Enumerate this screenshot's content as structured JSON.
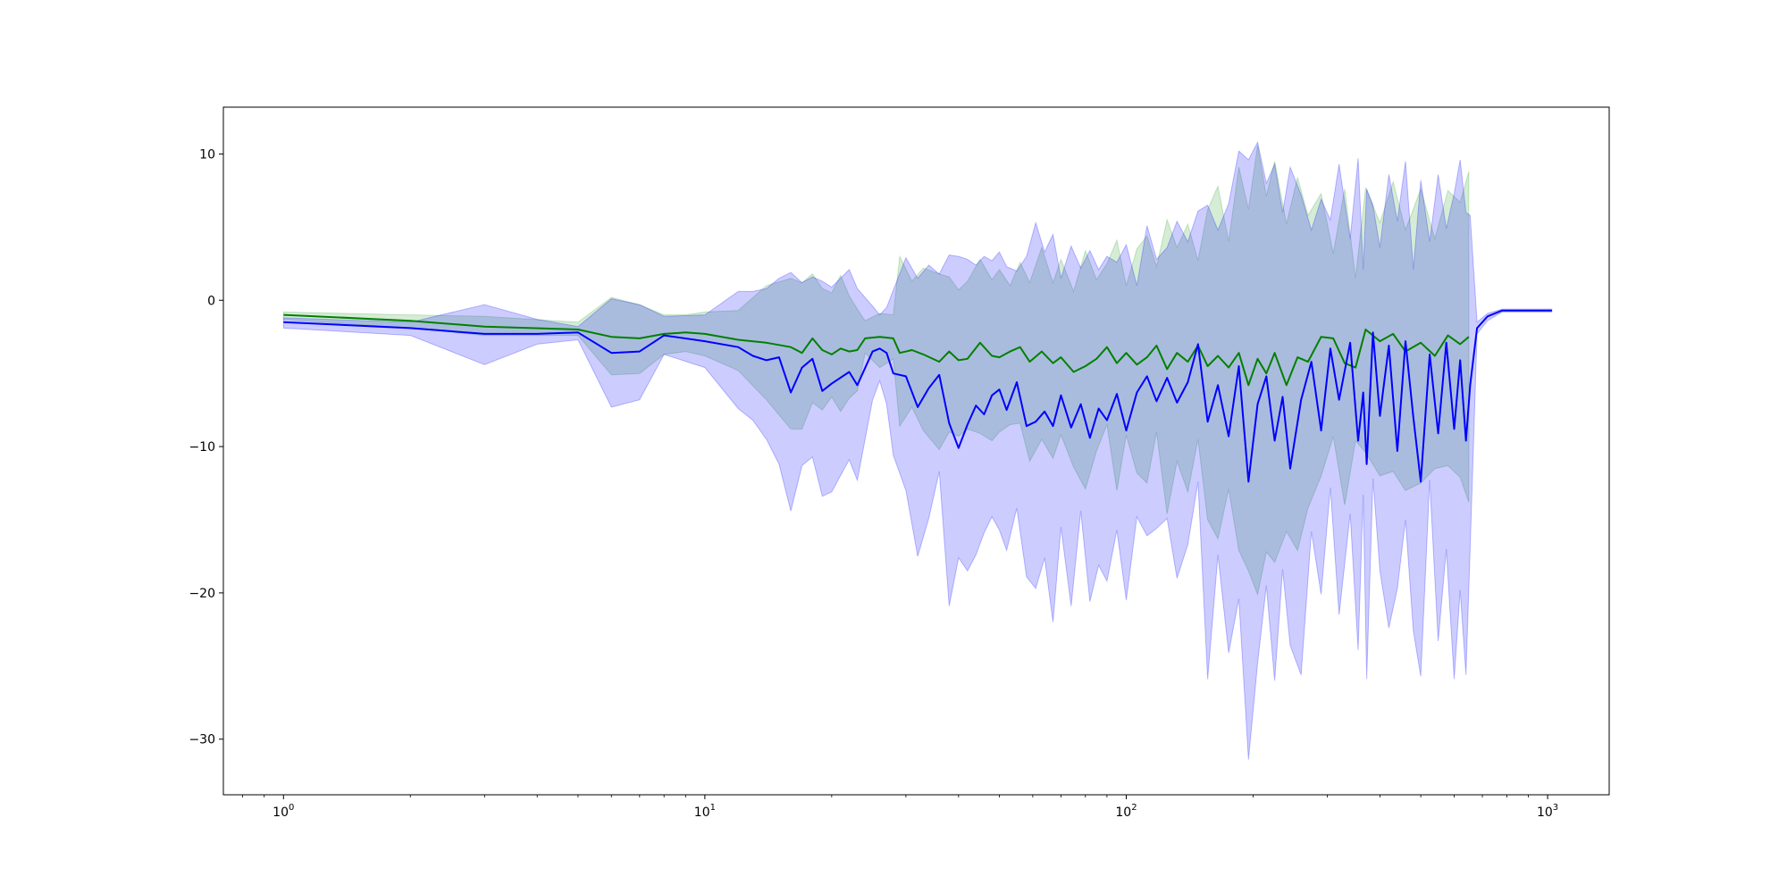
{
  "chart_data": {
    "type": "line",
    "title": "",
    "xlabel": "",
    "ylabel": "",
    "xscale": "log",
    "xlim": [
      0.72,
      1400
    ],
    "ylim": [
      -33.8,
      13.2
    ],
    "grid": false,
    "legend": "none",
    "x_ticks": [
      {
        "value": 1,
        "base": "10",
        "exp": "0"
      },
      {
        "value": 10,
        "base": "10",
        "exp": "1"
      },
      {
        "value": 100,
        "base": "10",
        "exp": "2"
      },
      {
        "value": 1000,
        "base": "10",
        "exp": "3"
      }
    ],
    "y_ticks": [
      {
        "value": 10,
        "label": "10"
      },
      {
        "value": 0,
        "label": "0"
      },
      {
        "value": -10,
        "label": "−10"
      },
      {
        "value": -20,
        "label": "−20"
      },
      {
        "value": -30,
        "label": "−30"
      }
    ],
    "series": [
      {
        "color": "#008000",
        "band_color": "#2ca02c",
        "points": [
          [
            1,
            -1.0,
            -0.8,
            -1.3
          ],
          [
            2,
            -1.4,
            -1.0,
            -1.9
          ],
          [
            3,
            -1.8,
            -1.1,
            -2.4
          ],
          [
            5,
            -2.0,
            -1.5,
            -2.4
          ],
          [
            6,
            -2.5,
            0.2,
            -5.1
          ],
          [
            7,
            -2.6,
            -0.3,
            -5.0
          ],
          [
            8,
            -2.3,
            -1.0,
            -3.7
          ],
          [
            9,
            -2.2,
            -1.0,
            -3.5
          ],
          [
            10,
            -2.3,
            -0.8,
            -3.8
          ],
          [
            12,
            -2.7,
            -0.7,
            -4.8
          ],
          [
            14,
            -2.9,
            1.0,
            -6.8
          ],
          [
            16,
            -3.2,
            1.5,
            -8.8
          ],
          [
            17,
            -3.6,
            1.2,
            -8.8
          ],
          [
            18,
            -2.6,
            1.8,
            -7.0
          ],
          [
            19,
            -3.4,
            0.8,
            -7.5
          ],
          [
            20,
            -3.7,
            0.5,
            -6.6
          ],
          [
            21,
            -3.3,
            1.7,
            -7.6
          ],
          [
            22,
            -3.5,
            0.3,
            -6.7
          ],
          [
            23,
            -3.4,
            -0.6,
            -6.2
          ],
          [
            24,
            -2.6,
            -1.4,
            -3.6
          ],
          [
            26,
            -2.5,
            -0.9,
            -4.6
          ],
          [
            28,
            -2.6,
            -1.0,
            -4.0
          ],
          [
            29,
            -3.6,
            3.0,
            -8.6
          ],
          [
            31,
            -3.4,
            1.3,
            -7.3
          ],
          [
            33,
            -3.7,
            2.2,
            -8.9
          ],
          [
            36,
            -4.2,
            1.8,
            -10.2
          ],
          [
            38,
            -3.5,
            1.6,
            -9.0
          ],
          [
            40,
            -4.1,
            0.7,
            -9.3
          ],
          [
            42,
            -4.0,
            1.3,
            -8.8
          ],
          [
            45,
            -2.9,
            2.8,
            -9.1
          ],
          [
            48,
            -3.8,
            1.4,
            -9.6
          ],
          [
            50,
            -3.9,
            2.1,
            -9.0
          ],
          [
            53,
            -3.5,
            1.0,
            -8.5
          ],
          [
            56,
            -3.2,
            2.6,
            -8.4
          ],
          [
            59,
            -4.2,
            1.2,
            -11.0
          ],
          [
            63,
            -3.5,
            3.6,
            -9.5
          ],
          [
            67,
            -4.3,
            1.2,
            -10.8
          ],
          [
            70,
            -3.9,
            2.8,
            -9.2
          ],
          [
            75,
            -4.9,
            0.6,
            -11.4
          ],
          [
            80,
            -4.5,
            3.4,
            -12.9
          ],
          [
            85,
            -4.0,
            1.4,
            -10.3
          ],
          [
            90,
            -3.2,
            2.5,
            -8.5
          ],
          [
            95,
            -4.3,
            4.1,
            -13.0
          ],
          [
            100,
            -3.6,
            1.0,
            -9.2
          ],
          [
            106,
            -4.4,
            3.5,
            -11.8
          ],
          [
            112,
            -3.9,
            4.4,
            -12.5
          ],
          [
            118,
            -3.1,
            2.3,
            -9.0
          ],
          [
            125,
            -4.7,
            5.5,
            -14.6
          ],
          [
            132,
            -3.6,
            3.6,
            -11.0
          ],
          [
            140,
            -4.2,
            5.2,
            -13.1
          ],
          [
            148,
            -3.1,
            2.7,
            -9.5
          ],
          [
            156,
            -4.5,
            6.2,
            -15.0
          ],
          [
            165,
            -3.8,
            7.8,
            -16.3
          ],
          [
            175,
            -4.6,
            4.0,
            -12.9
          ],
          [
            185,
            -3.6,
            9.1,
            -17.1
          ],
          [
            195,
            -5.8,
            6.2,
            -18.5
          ],
          [
            205,
            -4.0,
            10.6,
            -20.1
          ],
          [
            215,
            -5.0,
            7.1,
            -17.2
          ],
          [
            225,
            -3.6,
            9.5,
            -17.9
          ],
          [
            240,
            -5.8,
            5.2,
            -15.8
          ],
          [
            255,
            -3.9,
            8.4,
            -17.1
          ],
          [
            270,
            -4.2,
            5.8,
            -14.2
          ],
          [
            290,
            -2.5,
            7.3,
            -12.0
          ],
          [
            310,
            -2.6,
            3.2,
            -9.3
          ],
          [
            330,
            -4.3,
            7.6,
            -14.0
          ],
          [
            350,
            -4.6,
            1.5,
            -9.6
          ],
          [
            370,
            -2.0,
            7.7,
            -10.4
          ],
          [
            400,
            -2.8,
            5.3,
            -12.0
          ],
          [
            430,
            -2.3,
            8.1,
            -11.7
          ],
          [
            460,
            -3.5,
            4.8,
            -13.0
          ],
          [
            500,
            -2.9,
            7.6,
            -12.5
          ],
          [
            540,
            -3.8,
            4.2,
            -11.5
          ],
          [
            580,
            -2.4,
            7.5,
            -11.3
          ],
          [
            620,
            -3.0,
            6.7,
            -12.1
          ],
          [
            650,
            -2.5,
            8.8,
            -13.8
          ]
        ]
      },
      {
        "color": "#0000ff",
        "band_color": "#0000ff",
        "points": [
          [
            1,
            -1.5,
            -1.2,
            -1.9
          ],
          [
            2,
            -1.9,
            -1.5,
            -2.4
          ],
          [
            3,
            -2.3,
            -0.3,
            -4.4
          ],
          [
            4,
            -2.3,
            -1.3,
            -3.0
          ],
          [
            5,
            -2.2,
            -1.8,
            -2.7
          ],
          [
            6,
            -3.6,
            0.1,
            -7.3
          ],
          [
            7,
            -3.5,
            -0.3,
            -6.8
          ],
          [
            8,
            -2.4,
            -1.1,
            -3.7
          ],
          [
            10,
            -2.8,
            -1.0,
            -4.6
          ],
          [
            12,
            -3.2,
            0.6,
            -7.4
          ],
          [
            13,
            -3.8,
            0.6,
            -8.2
          ],
          [
            14,
            -4.1,
            0.8,
            -9.5
          ],
          [
            15,
            -3.9,
            1.5,
            -11.2
          ],
          [
            16,
            -6.3,
            1.9,
            -14.4
          ],
          [
            17,
            -4.6,
            1.2,
            -11.3
          ],
          [
            18,
            -4.0,
            1.6,
            -10.7
          ],
          [
            19,
            -6.2,
            1.3,
            -13.4
          ],
          [
            20,
            -5.7,
            0.9,
            -13.1
          ],
          [
            22,
            -4.9,
            2.1,
            -10.9
          ],
          [
            23,
            -5.8,
            0.8,
            -12.3
          ],
          [
            25,
            -3.5,
            -0.4,
            -6.8
          ],
          [
            26,
            -3.3,
            -1.0,
            -5.5
          ],
          [
            27,
            -3.6,
            -0.5,
            -7.1
          ],
          [
            28,
            -5.0,
            0.7,
            -10.6
          ],
          [
            30,
            -5.2,
            2.9,
            -13.0
          ],
          [
            32,
            -7.3,
            1.5,
            -17.5
          ],
          [
            34,
            -6.0,
            2.4,
            -14.9
          ],
          [
            36,
            -5.1,
            1.8,
            -11.7
          ],
          [
            38,
            -8.4,
            3.1,
            -20.9
          ],
          [
            40,
            -10.1,
            3.0,
            -17.6
          ],
          [
            42,
            -8.5,
            2.8,
            -18.5
          ],
          [
            44,
            -7.2,
            2.4,
            -17.4
          ],
          [
            46,
            -7.8,
            3.0,
            -15.9
          ],
          [
            48,
            -6.5,
            2.7,
            -14.8
          ],
          [
            50,
            -6.1,
            3.3,
            -15.7
          ],
          [
            52,
            -7.5,
            2.3,
            -17.1
          ],
          [
            55,
            -5.6,
            2.0,
            -14.2
          ],
          [
            58,
            -8.6,
            3.0,
            -18.9
          ],
          [
            61,
            -8.3,
            5.3,
            -19.7
          ],
          [
            64,
            -7.6,
            3.3,
            -17.6
          ],
          [
            67,
            -8.6,
            4.5,
            -22.0
          ],
          [
            70,
            -6.5,
            1.5,
            -15.5
          ],
          [
            74,
            -8.7,
            3.7,
            -20.9
          ],
          [
            78,
            -7.1,
            2.2,
            -14.4
          ],
          [
            82,
            -9.4,
            3.4,
            -20.6
          ],
          [
            86,
            -7.4,
            2.1,
            -18.1
          ],
          [
            90,
            -8.2,
            3.0,
            -19.2
          ],
          [
            95,
            -6.4,
            2.6,
            -15.7
          ],
          [
            100,
            -8.9,
            3.8,
            -20.5
          ],
          [
            106,
            -6.3,
            1.0,
            -14.8
          ],
          [
            112,
            -5.2,
            5.1,
            -16.1
          ],
          [
            118,
            -6.9,
            2.8,
            -15.6
          ],
          [
            125,
            -5.3,
            3.6,
            -14.9
          ],
          [
            132,
            -7.0,
            5.4,
            -19.0
          ],
          [
            140,
            -5.6,
            4.0,
            -16.7
          ],
          [
            148,
            -3.0,
            6.1,
            -12.4
          ],
          [
            156,
            -8.3,
            6.5,
            -25.9
          ],
          [
            165,
            -5.8,
            4.8,
            -17.4
          ],
          [
            175,
            -9.3,
            6.6,
            -24.1
          ],
          [
            185,
            -4.5,
            10.2,
            -20.4
          ],
          [
            195,
            -12.4,
            9.6,
            -31.4
          ],
          [
            205,
            -7.1,
            10.8,
            -24.8
          ],
          [
            215,
            -5.2,
            8.0,
            -19.5
          ],
          [
            225,
            -9.6,
            9.3,
            -26.0
          ],
          [
            235,
            -6.6,
            6.0,
            -18.4
          ],
          [
            245,
            -11.5,
            9.1,
            -23.6
          ],
          [
            260,
            -6.8,
            7.2,
            -25.6
          ],
          [
            275,
            -4.2,
            4.8,
            -15.8
          ],
          [
            290,
            -8.9,
            6.9,
            -20.1
          ],
          [
            305,
            -3.3,
            5.5,
            -12.8
          ],
          [
            320,
            -6.8,
            9.3,
            -21.5
          ],
          [
            340,
            -2.9,
            4.2,
            -14.6
          ],
          [
            355,
            -9.6,
            9.7,
            -23.9
          ],
          [
            365,
            -6.3,
            2.1,
            -13.3
          ],
          [
            372,
            -11.2,
            7.6,
            -25.9
          ],
          [
            385,
            -2.2,
            6.5,
            -12.2
          ],
          [
            400,
            -7.9,
            3.6,
            -18.5
          ],
          [
            420,
            -3.1,
            8.6,
            -22.4
          ],
          [
            440,
            -10.3,
            5.4,
            -19.7
          ],
          [
            460,
            -2.8,
            9.5,
            -15.0
          ],
          [
            480,
            -8.0,
            2.1,
            -22.6
          ],
          [
            500,
            -12.4,
            8.2,
            -25.7
          ],
          [
            525,
            -3.7,
            4.0,
            -12.3
          ],
          [
            550,
            -9.1,
            8.6,
            -23.3
          ],
          [
            575,
            -2.9,
            4.9,
            -17.0
          ],
          [
            600,
            -8.8,
            7.3,
            -25.9
          ],
          [
            620,
            -4.1,
            9.6,
            -19.8
          ],
          [
            640,
            -9.6,
            6.0,
            -25.6
          ],
          [
            655,
            -5.8,
            5.8,
            -16.9
          ],
          [
            680,
            -1.9,
            -1.5,
            -2.3
          ],
          [
            720,
            -1.1,
            -0.9,
            -1.4
          ],
          [
            780,
            -0.7,
            -0.6,
            -0.8
          ],
          [
            1000,
            -0.7,
            -0.6,
            -0.8
          ],
          [
            1024,
            -0.7,
            -0.6,
            -0.8
          ]
        ]
      }
    ]
  }
}
